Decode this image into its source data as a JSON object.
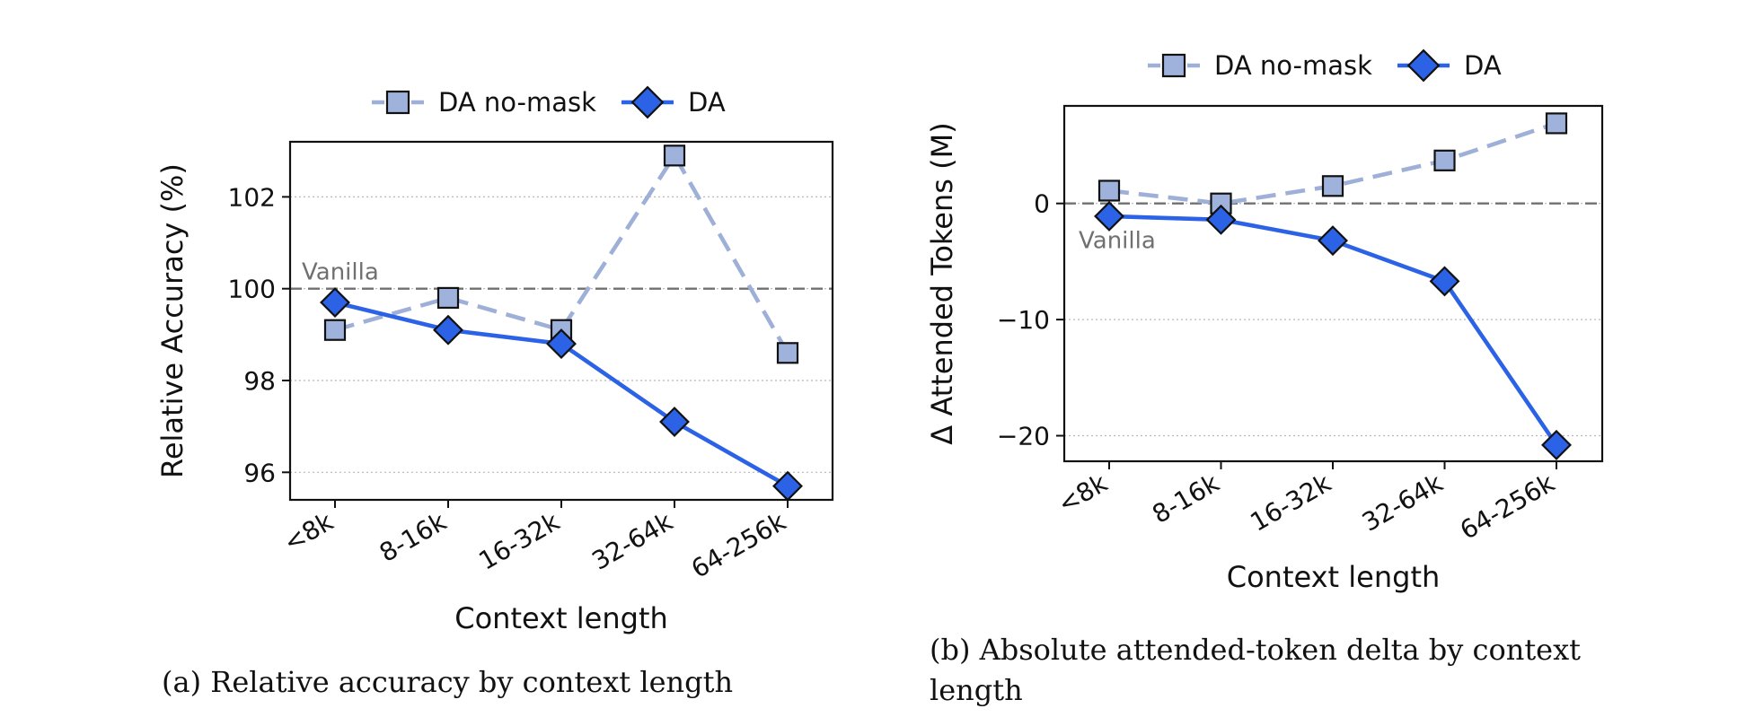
{
  "captions": {
    "a": "(a) Relative accuracy by context length",
    "b": "(b) Absolute attended-token delta by context length"
  },
  "colors": {
    "da": "#2c62e6",
    "da_nomask_line": "#9eb0d8",
    "da_nomask_marker": "#9fb2dc",
    "baseline": "#707070",
    "grid": "#b8b8b8"
  },
  "chart_data": [
    {
      "type": "line",
      "categories": [
        "<8k",
        "8-16k",
        "16-32k",
        "32-64k",
        "64-256k"
      ],
      "xlabel": "Context length",
      "ylabel": "Relative Accuracy (%)",
      "ylim": [
        95.4,
        103.2
      ],
      "yticks": [
        96,
        98,
        100,
        102
      ],
      "ytick_labels": [
        "96",
        "98",
        "100",
        "102"
      ],
      "baseline": {
        "value": 100,
        "label": "Vanilla"
      },
      "grid": "horizontal dotted",
      "legend": "top-center",
      "series": [
        {
          "name": "DA no-mask",
          "marker": "square",
          "dash": true,
          "values": [
            99.1,
            99.8,
            99.1,
            102.9,
            98.6
          ]
        },
        {
          "name": "DA",
          "marker": "diamond",
          "dash": false,
          "values": [
            99.7,
            99.1,
            98.8,
            97.1,
            95.7
          ]
        }
      ]
    },
    {
      "type": "line",
      "categories": [
        "<8k",
        "8-16k",
        "16-32k",
        "32-64k",
        "64-256k"
      ],
      "xlabel": "Context length",
      "ylabel": "Δ Attended Tokens (M)",
      "ylim": [
        -22.2,
        8.4
      ],
      "yticks": [
        -20,
        -10,
        0
      ],
      "ytick_labels": [
        "−20",
        "−10",
        "0"
      ],
      "baseline": {
        "value": 0,
        "label": "Vanilla"
      },
      "grid": "horizontal dotted",
      "legend": "top-center",
      "series": [
        {
          "name": "DA no-mask",
          "marker": "square",
          "dash": true,
          "values": [
            1.1,
            0.0,
            1.5,
            3.7,
            6.9
          ]
        },
        {
          "name": "DA",
          "marker": "diamond",
          "dash": false,
          "values": [
            -1.1,
            -1.4,
            -3.2,
            -6.7,
            -20.8
          ]
        }
      ]
    }
  ]
}
